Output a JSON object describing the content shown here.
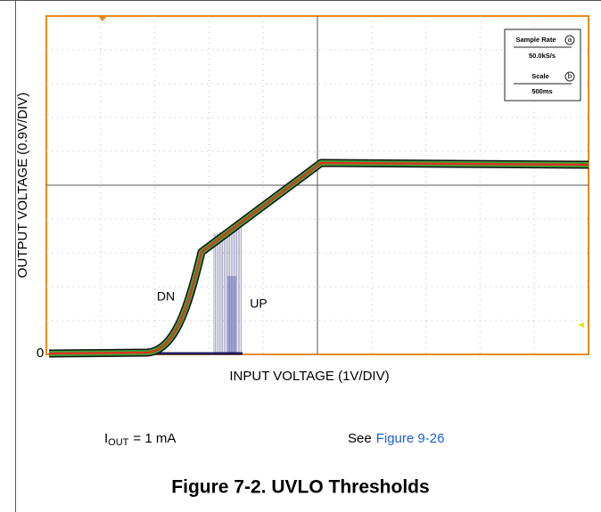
{
  "figure": {
    "y_axis_label": "OUTPUT VOLTAGE (0.9V/DIV)",
    "origin_label": "0",
    "x_axis_label": "INPUT VOLTAGE (1V/DIV)",
    "trace_labels": [
      "DN",
      "UP"
    ],
    "scope_box": {
      "sample_rate_label": "Sample Rate",
      "sample_rate_marker": "a",
      "sample_rate": "50.0kS/s",
      "scale_label": "Scale",
      "scale_marker": "b",
      "scale": "500ms"
    }
  },
  "caption": {
    "current_prefix": "I",
    "current_subscript": "OUT",
    "current_value": "= 1 mA",
    "see": "See",
    "link": "Figure 9-26",
    "title": "Figure 7-2. UVLO Thresholds"
  }
}
